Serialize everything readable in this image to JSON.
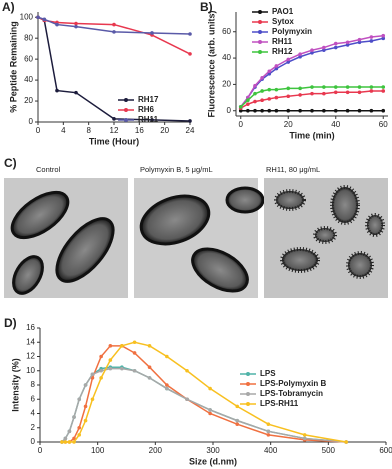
{
  "chart_data": [
    {
      "type": "line",
      "panel_label": "A)",
      "xlabel": "Time (Hour)",
      "ylabel": "% Peptide Remaining",
      "x": [
        0,
        1,
        3,
        6,
        12,
        18,
        24
      ],
      "xlim": [
        0,
        24
      ],
      "xticks": [
        0,
        4,
        8,
        12,
        16,
        20,
        24
      ],
      "ylim": [
        0,
        105
      ],
      "yticks": [
        0,
        20,
        40,
        60,
        80,
        100
      ],
      "legend": "lower right",
      "series": [
        {
          "name": "RH17",
          "color": "#1c1c3c",
          "values": [
            100,
            97,
            30,
            28,
            3,
            2,
            1
          ]
        },
        {
          "name": "RH6",
          "color": "#e8384f",
          "values": [
            100,
            97,
            95,
            94,
            93,
            83,
            65
          ]
        },
        {
          "name": "RH11",
          "color": "#5a5aa8",
          "values": [
            100,
            98,
            93,
            91,
            86,
            85,
            84
          ]
        }
      ]
    },
    {
      "type": "line",
      "panel_label": "B)",
      "xlabel": "Time (min)",
      "ylabel": "Fluorescence (arb. units)",
      "x": [
        0,
        3,
        6,
        9,
        12,
        15,
        20,
        25,
        30,
        35,
        40,
        45,
        50,
        55,
        60
      ],
      "xlim": [
        -2,
        62
      ],
      "xticks": [
        0,
        20,
        40,
        60
      ],
      "ylim": [
        -4,
        75
      ],
      "yticks": [
        0,
        20,
        40,
        60
      ],
      "legend": "upper left",
      "series": [
        {
          "name": "PAO1",
          "color": "#111111",
          "values": [
            0,
            0,
            0,
            0,
            0,
            0,
            0,
            0,
            0,
            0,
            0,
            0,
            0,
            0,
            0
          ]
        },
        {
          "name": "Sytox",
          "color": "#e8384f",
          "values": [
            2,
            5,
            7,
            8,
            9,
            10,
            11,
            12,
            13,
            13,
            14,
            14,
            14,
            15,
            15
          ]
        },
        {
          "name": "Polymyxin",
          "color": "#4d4dc8",
          "values": [
            3,
            10,
            18,
            24,
            28,
            32,
            37,
            41,
            44,
            46,
            48,
            50,
            52,
            53,
            55
          ]
        },
        {
          "name": "RH11",
          "color": "#c050c0",
          "values": [
            3,
            10,
            19,
            25,
            30,
            34,
            39,
            43,
            46,
            48,
            51,
            52,
            54,
            56,
            57
          ]
        },
        {
          "name": "RH12",
          "color": "#3ec43e",
          "values": [
            3,
            8,
            13,
            15,
            16,
            16,
            17,
            17,
            18,
            18,
            18,
            18,
            18,
            18,
            18
          ]
        }
      ]
    },
    {
      "type": "line",
      "panel_label": "D)",
      "xlabel": "Size (d.nm)",
      "ylabel": "Intensity (%)",
      "x": [
        38,
        44,
        51,
        59,
        68,
        79,
        91,
        106,
        122,
        142,
        164,
        190,
        220,
        255,
        295,
        342,
        396,
        459,
        531
      ],
      "xlim": [
        0,
        600
      ],
      "xticks": [
        0,
        100,
        200,
        300,
        400,
        500,
        600
      ],
      "ylim": [
        0,
        16
      ],
      "yticks": [
        0,
        2,
        4,
        6,
        8,
        10,
        12,
        14,
        16
      ],
      "legend": "center right",
      "series": [
        {
          "name": "LPS",
          "color": "#4fb3a8",
          "values": [
            0,
            0.5,
            1.5,
            3.5,
            6,
            8,
            9.5,
            10.3,
            10.5,
            10.5,
            10,
            9,
            7.5,
            6,
            4.5,
            3,
            1.5,
            0.5,
            0
          ]
        },
        {
          "name": "LPS-Polymyxin B",
          "color": "#f07040",
          "values": [
            0,
            0,
            0,
            0.5,
            2,
            5,
            9,
            12,
            13.5,
            13.5,
            12.5,
            10.5,
            8,
            6,
            4,
            2.5,
            1,
            0.3,
            0
          ]
        },
        {
          "name": "LPS-Tobramycin",
          "color": "#a8a8a8",
          "values": [
            0,
            0.5,
            1.5,
            3.5,
            6,
            8,
            9.5,
            10,
            10.3,
            10.3,
            10,
            9,
            7.5,
            6,
            4.5,
            3,
            1.5,
            0.5,
            0
          ]
        },
        {
          "name": "LPS-RH11",
          "color": "#f8c020",
          "values": [
            0,
            0,
            0,
            0,
            1,
            3,
            6,
            9,
            11.5,
            13.5,
            14,
            13.5,
            12,
            10,
            7.5,
            5,
            2.5,
            1,
            0
          ]
        }
      ]
    }
  ],
  "micrographs": {
    "panel_label": "C)",
    "captions": [
      "Control",
      "Polymyxin B, 5 μg/mL",
      "RH11, 80 μg/mL"
    ]
  }
}
